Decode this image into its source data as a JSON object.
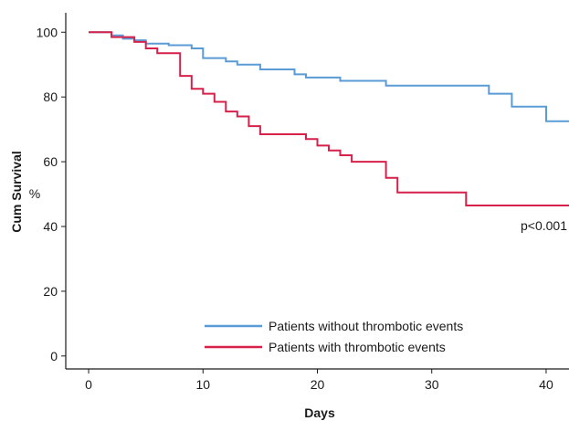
{
  "chart_data": {
    "type": "line",
    "step": true,
    "xlabel": "Days",
    "ylabel": "Cum Survival",
    "yunit": "%",
    "xlim": [
      -2,
      42
    ],
    "ylim": [
      -4,
      106
    ],
    "xticks": [
      0,
      10,
      20,
      30,
      40
    ],
    "yticks": [
      0,
      20,
      40,
      60,
      80,
      100
    ],
    "grid": false,
    "legend_position": "bottom-center",
    "annotation": "p<0.001",
    "series": [
      {
        "name": "Patients without thrombotic events",
        "color": "#5b9bd5",
        "x": [
          0,
          2,
          3,
          4,
          5,
          7,
          9,
          10,
          12,
          13,
          15,
          18,
          19,
          22,
          26,
          35,
          37,
          40,
          42
        ],
        "y": [
          100,
          99,
          98,
          97.5,
          96.5,
          96,
          95,
          92,
          91,
          90,
          88.5,
          87,
          86,
          85,
          83.5,
          81,
          77,
          72.5,
          72.5
        ]
      },
      {
        "name": "Patients with thrombotic events",
        "color": "#d6214a",
        "x": [
          0,
          2,
          4,
          5,
          6,
          8,
          9,
          10,
          11,
          12,
          13,
          14,
          15,
          19,
          20,
          21,
          22,
          23,
          25,
          26,
          27,
          33,
          42
        ],
        "y": [
          100,
          98.5,
          97,
          95,
          93.5,
          86.5,
          82.5,
          81,
          78.5,
          75.5,
          74,
          71,
          68.5,
          67,
          65,
          63.5,
          62,
          60,
          60,
          55,
          50.5,
          46.5,
          46.5
        ]
      }
    ]
  }
}
